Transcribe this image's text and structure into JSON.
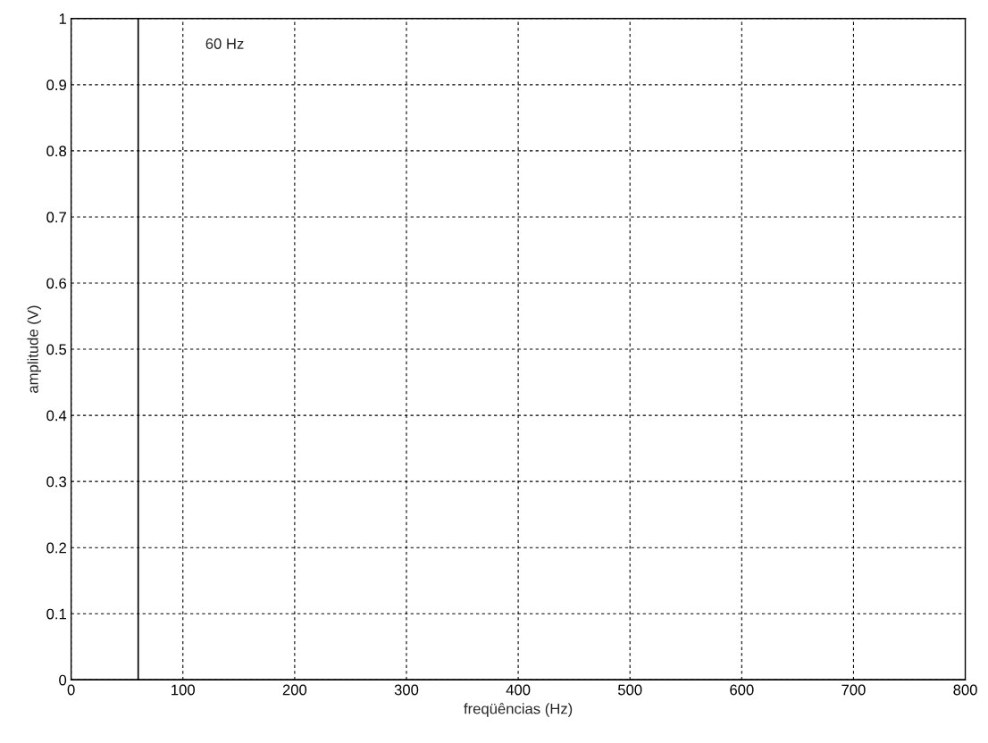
{
  "chart_data": {
    "type": "line",
    "xlabel": "freqüências (Hz)",
    "ylabel": "amplitude (V)",
    "x": [
      0,
      60,
      60,
      60,
      800
    ],
    "series": [
      {
        "color": "#000000",
        "values": [
          0,
          0,
          1,
          0,
          0
        ]
      }
    ],
    "xlim": [
      0,
      800
    ],
    "xticks": [
      0,
      100,
      200,
      300,
      400,
      500,
      600,
      700,
      800
    ],
    "ylim": [
      0,
      1
    ],
    "yticks": [
      0,
      0.1,
      0.2,
      0.3,
      0.4,
      0.5,
      0.6,
      0.7,
      0.8,
      0.9,
      1
    ],
    "grid": true,
    "line_style": "solid",
    "annotations": [
      "60 Hz"
    ]
  }
}
